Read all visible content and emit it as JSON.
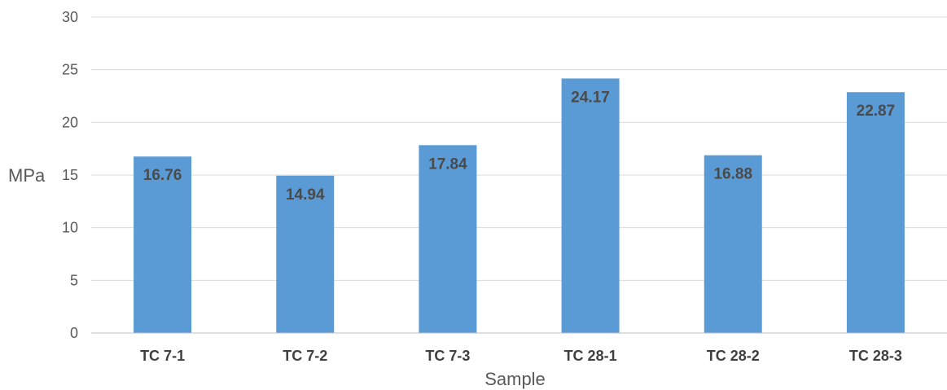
{
  "chart_data": {
    "type": "bar",
    "title": "",
    "xlabel": "Sample",
    "ylabel": "MPa",
    "categories": [
      "TC 7-1",
      "TC 7-2",
      "TC 7-3",
      "TC 28-1",
      "TC 28-2",
      "TC 28-3"
    ],
    "values": [
      16.76,
      14.94,
      17.84,
      24.17,
      16.88,
      22.87
    ],
    "data_labels": [
      "16.76",
      "14.94",
      "17.84",
      "24.17",
      "16.88",
      "22.87"
    ],
    "ylim": [
      0,
      30
    ],
    "yticks": [
      0,
      5,
      10,
      15,
      20,
      25,
      30
    ],
    "grid": true,
    "legend": "none",
    "bar_color": "#5b9bd5"
  }
}
